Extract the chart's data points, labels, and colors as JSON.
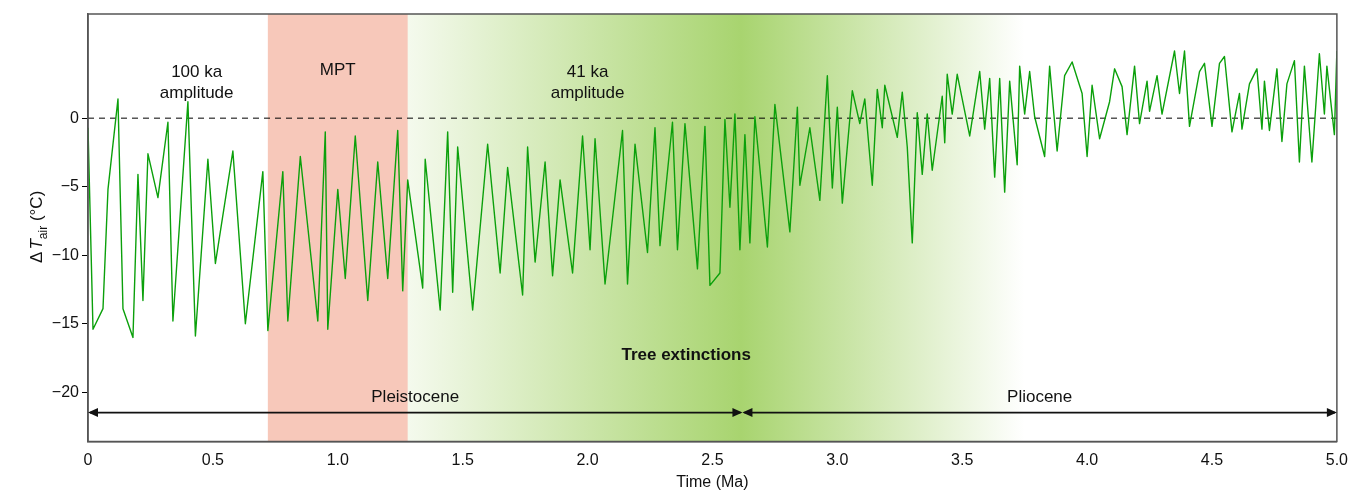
{
  "chart_data": {
    "type": "line",
    "xlabel": "Time (Ma)",
    "ylabel": "ΔT$_{air}$ (°C)",
    "xlim": [
      0,
      5.0
    ],
    "xticks": [
      0,
      0.5,
      {
        "value": 1,
        "label": "1.0"
      },
      1.5,
      {
        "value": 2,
        "label": "2.0"
      },
      2.5,
      {
        "value": 3,
        "label": "3.0"
      },
      3.5,
      {
        "value": 4,
        "label": "4.0"
      },
      4.5,
      {
        "value": 5,
        "label": "5.0"
      }
    ],
    "ylim": [
      -23.6,
      7.6
    ],
    "yticks": [
      {
        "value": -20,
        "label": "−20"
      },
      {
        "value": -15,
        "label": "−15"
      },
      {
        "value": -10,
        "label": "−10"
      },
      {
        "value": -5,
        "label": "−5"
      },
      0
    ],
    "grid": false,
    "legend": false,
    "marker": "none",
    "line_style": "solid",
    "ref_lines": [
      {
        "axis": "y",
        "value": 0,
        "line_style": "dashed",
        "color": "#000000"
      }
    ],
    "bands": [
      {
        "axis": "x",
        "from": 0.72,
        "to": 1.28,
        "label": "MPT",
        "color": "#f7c8ba"
      },
      {
        "axis": "x",
        "from": 1.28,
        "to": 3.75,
        "label": "Tree extinctions",
        "color": "#a8d46f"
      }
    ],
    "annotations": [
      "100 ka\namplitude",
      "41 ka\namplitude",
      "Pleistocene",
      "Pliocene"
    ],
    "series": [
      {
        "color": "#0ba00b",
        "x": [
          0,
          0.02,
          0.06,
          0.08,
          0.12,
          0.14,
          0.18,
          0.2,
          0.22,
          0.24,
          0.28,
          0.32,
          0.34,
          0.4,
          0.43,
          0.48,
          0.51,
          0.58,
          0.63,
          0.7,
          0.72,
          0.78,
          0.8,
          0.85,
          0.92,
          0.95,
          0.96,
          1.0,
          1.03,
          1.07,
          1.12,
          1.16,
          1.2,
          1.24,
          1.26,
          1.28,
          1.34,
          1.35,
          1.41,
          1.44,
          1.46,
          1.48,
          1.54,
          1.6,
          1.65,
          1.68,
          1.74,
          1.76,
          1.79,
          1.83,
          1.86,
          1.89,
          1.94,
          1.98,
          2.01,
          2.03,
          2.07,
          2.14,
          2.16,
          2.19,
          2.24,
          2.27,
          2.29,
          2.34,
          2.36,
          2.39,
          2.44,
          2.47,
          2.49,
          2.53,
          2.55,
          2.57,
          2.59,
          2.61,
          2.63,
          2.65,
          2.67,
          2.72,
          2.75,
          2.81,
          2.84,
          2.85,
          2.89,
          2.93,
          2.96,
          2.98,
          3.0,
          3.02,
          3.06,
          3.09,
          3.11,
          3.14,
          3.16,
          3.18,
          3.19,
          3.24,
          3.26,
          3.28,
          3.3,
          3.32,
          3.34,
          3.36,
          3.38,
          3.42,
          3.43,
          3.44,
          3.46,
          3.48,
          3.53,
          3.57,
          3.59,
          3.61,
          3.63,
          3.65,
          3.67,
          3.69,
          3.72,
          3.73,
          3.75,
          3.77,
          3.79,
          3.83,
          3.85,
          3.88,
          3.91,
          3.94,
          3.98,
          4.0,
          4.02,
          4.05,
          4.09,
          4.11,
          4.14,
          4.16,
          4.19,
          4.21,
          4.24,
          4.25,
          4.28,
          4.3,
          4.35,
          4.37,
          4.39,
          4.41,
          4.45,
          4.47,
          4.5,
          4.53,
          4.55,
          4.58,
          4.61,
          4.62,
          4.65,
          4.68,
          4.7,
          4.71,
          4.73,
          4.76,
          4.78,
          4.8,
          4.83,
          4.85,
          4.87,
          4.9,
          4.93,
          4.95,
          4.96,
          4.99,
          5.0
        ],
        "values": [
          -0.7,
          -15.4,
          -13.9,
          -5.2,
          1.4,
          -13.9,
          -16,
          -4.1,
          -13.3,
          -2.6,
          -5.8,
          -0.3,
          -14.8,
          1.2,
          -15.9,
          -3,
          -10.6,
          -2.4,
          -15,
          -3.9,
          -15.5,
          -3.9,
          -14.8,
          -2.8,
          -14.8,
          -1,
          -15.4,
          -5.2,
          -11.7,
          -1.3,
          -13.3,
          -3.2,
          -11.7,
          -0.9,
          -12.6,
          -4.5,
          -12.4,
          -3,
          -14,
          -1,
          -12.7,
          -2.1,
          -14,
          -1.9,
          -11.3,
          -3.6,
          -12.9,
          -2.1,
          -10.5,
          -3.2,
          -11.5,
          -4.5,
          -11.3,
          -1.3,
          -9.6,
          -1.5,
          -12.1,
          -0.9,
          -12.1,
          -1.9,
          -9.8,
          -0.7,
          -9.3,
          -0.3,
          -9.6,
          -0.4,
          -11,
          -0.6,
          -12.2,
          -11.3,
          -0.1,
          -6.5,
          0.3,
          -9.6,
          -1.2,
          -9.1,
          0.1,
          -9.4,
          1,
          -8.3,
          0.8,
          -4.9,
          -0.7,
          -6,
          3.1,
          -5.1,
          0.8,
          -6.2,
          2,
          -0.4,
          1.4,
          -4.9,
          2.1,
          -0.7,
          2.4,
          -1.4,
          1.9,
          -2.1,
          -9.1,
          0.4,
          -4.1,
          0.3,
          -3.8,
          1.6,
          -1.8,
          3.2,
          0.3,
          3.2,
          -1.3,
          3.4,
          -0.8,
          2.9,
          -4.3,
          2.9,
          -5.4,
          2.7,
          -3.4,
          3.8,
          0.3,
          3.4,
          0.1,
          -2.8,
          3.8,
          -2.4,
          3.1,
          4.1,
          1.8,
          -2.8,
          2.4,
          -1.5,
          1.2,
          3.6,
          2.3,
          -1.2,
          3.8,
          -0.4,
          2.7,
          0.5,
          3.1,
          0.3,
          4.9,
          1.8,
          4.9,
          -0.6,
          3.4,
          4,
          -0.6,
          4,
          4.5,
          -1,
          1.8,
          -0.8,
          2.5,
          3.6,
          -0.8,
          2.7,
          -0.9,
          3.6,
          -1.7,
          2.5,
          4.2,
          -3.2,
          3.8,
          -3.2,
          4.7,
          0.3,
          3.8,
          -1.2,
          4.9
        ]
      }
    ]
  }
}
